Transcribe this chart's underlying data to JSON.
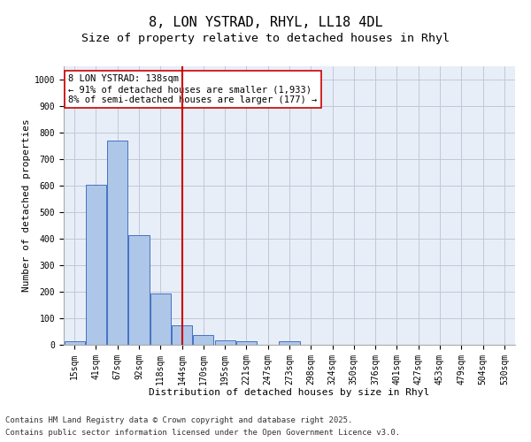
{
  "title1": "8, LON YSTRAD, RHYL, LL18 4DL",
  "title2": "Size of property relative to detached houses in Rhyl",
  "xlabel": "Distribution of detached houses by size in Rhyl",
  "ylabel": "Number of detached properties",
  "categories": [
    "15sqm",
    "41sqm",
    "67sqm",
    "92sqm",
    "118sqm",
    "144sqm",
    "170sqm",
    "195sqm",
    "221sqm",
    "247sqm",
    "273sqm",
    "298sqm",
    "324sqm",
    "350sqm",
    "376sqm",
    "401sqm",
    "427sqm",
    "453sqm",
    "479sqm",
    "504sqm",
    "530sqm"
  ],
  "values": [
    15,
    605,
    770,
    412,
    192,
    75,
    38,
    18,
    13,
    0,
    13,
    0,
    0,
    0,
    0,
    0,
    0,
    0,
    0,
    0,
    0
  ],
  "bar_color": "#aec6e8",
  "bar_edge_color": "#4472c4",
  "vline_x_idx": 5,
  "vline_color": "#cc0000",
  "annotation_text": "8 LON YSTRAD: 138sqm\n← 91% of detached houses are smaller (1,933)\n8% of semi-detached houses are larger (177) →",
  "annotation_box_color": "#ffffff",
  "annotation_box_edge": "#cc0000",
  "ylim": [
    0,
    1050
  ],
  "yticks": [
    0,
    100,
    200,
    300,
    400,
    500,
    600,
    700,
    800,
    900,
    1000
  ],
  "grid_color": "#c0c8d8",
  "bg_color": "#e8eef8",
  "footer1": "Contains HM Land Registry data © Crown copyright and database right 2025.",
  "footer2": "Contains public sector information licensed under the Open Government Licence v3.0.",
  "title_fontsize": 11,
  "subtitle_fontsize": 9.5,
  "axis_label_fontsize": 8,
  "tick_fontsize": 7,
  "annotation_fontsize": 7.5,
  "footer_fontsize": 6.5
}
